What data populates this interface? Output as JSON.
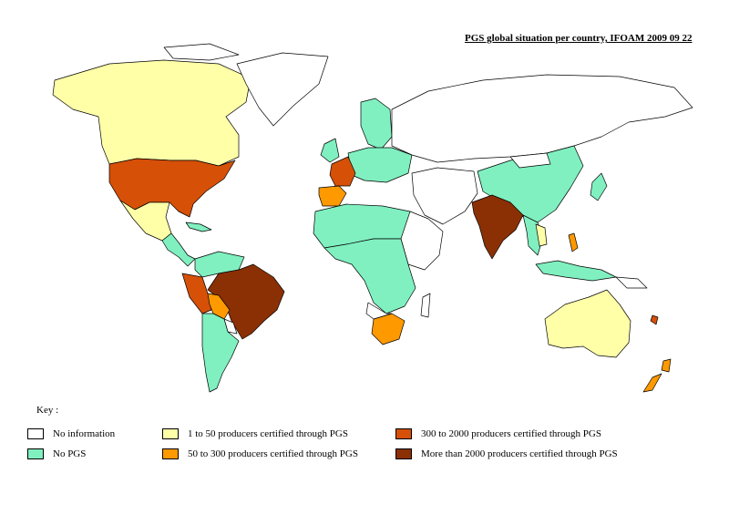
{
  "title": "PGS global situation per country, IFOAM 2009 09 22",
  "key_label": "Key :",
  "colors": {
    "no_information": "#ffffff",
    "no_pgs": "#80f0c0",
    "1_50": "#ffffa8",
    "50_300": "#ff9900",
    "300_2000": "#d65008",
    "2000_plus": "#8b3005"
  },
  "legend": [
    {
      "label": "No information",
      "color": "#ffffff"
    },
    {
      "label": "No PGS",
      "color": "#80f0c0"
    },
    {
      "label": "1 to 50 producers certified through PGS",
      "color": "#ffffa8"
    },
    {
      "label": "50 to 300 producers certified through PGS",
      "color": "#ff9900"
    },
    {
      "label": "300 to 2000 producers certified through PGS",
      "color": "#d65008"
    },
    {
      "label": "More than 2000 producers certified through PGS",
      "color": "#8b3005"
    }
  ]
}
